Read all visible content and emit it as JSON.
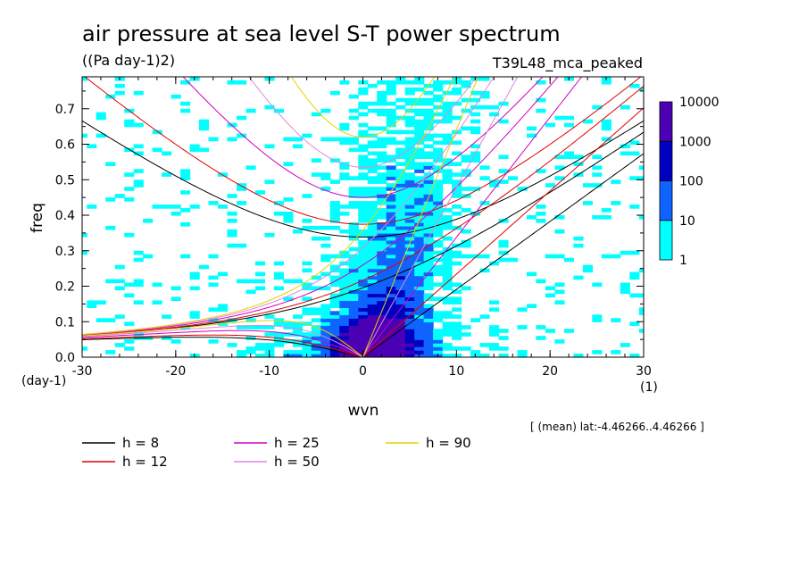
{
  "header": {
    "title": "air pressure at sea level S-T power spectrum",
    "units": "((Pa day-1)2)",
    "run_name": "T39L48_mca_peaked"
  },
  "footer": {
    "mean_note": "[ (mean) lat:-4.46266..4.46266 ]"
  },
  "colors": {
    "black": "#000000",
    "red": "#e00000",
    "magenta": "#d000c0",
    "violet": "#dd88dd",
    "yellow": "#e8d000",
    "level1": "#00ffff",
    "level2": "#0f64ff",
    "level3": "#0000c0",
    "level4": "#4b00b4"
  },
  "chart_data": {
    "type": "heatmap",
    "title": "air pressure at sea level S-T power spectrum",
    "xlabel": "wvn",
    "ylabel": "freq",
    "x_unit_label": "(1)",
    "y_unit_label": "(day-1)",
    "xlim": [
      -30,
      30
    ],
    "ylim": [
      0.0,
      0.79
    ],
    "x_ticks": [
      -30,
      -20,
      -10,
      0,
      10,
      20,
      30
    ],
    "x_tick_labels": [
      "-30",
      "-20",
      "-10",
      "0",
      "10",
      "20",
      "30"
    ],
    "y_ticks": [
      0.0,
      0.1,
      0.2,
      0.3,
      0.4,
      0.5,
      0.6,
      0.7
    ],
    "y_tick_labels": [
      "0.0",
      "0.1",
      "0.2",
      "0.3",
      "0.4",
      "0.5",
      "0.6",
      "0.7"
    ],
    "colorbar": {
      "levels": [
        1,
        10,
        100,
        1000,
        10000
      ],
      "labels": [
        "1",
        "10",
        "100",
        "1000",
        "10000"
      ],
      "colors": [
        "#00ffff",
        "#0f64ff",
        "#0000c0",
        "#4b00b4"
      ]
    },
    "dispersion_curves": [
      {
        "name": "h =  8",
        "h": 8,
        "color": "#000000"
      },
      {
        "name": "h = 12",
        "h": 12,
        "color": "#e00000"
      },
      {
        "name": "h = 25",
        "h": 25,
        "color": "#d000c0"
      },
      {
        "name": "h = 50",
        "h": 50,
        "color": "#dd88dd"
      },
      {
        "name": "h = 90",
        "h": 90,
        "color": "#e8d000"
      }
    ]
  }
}
